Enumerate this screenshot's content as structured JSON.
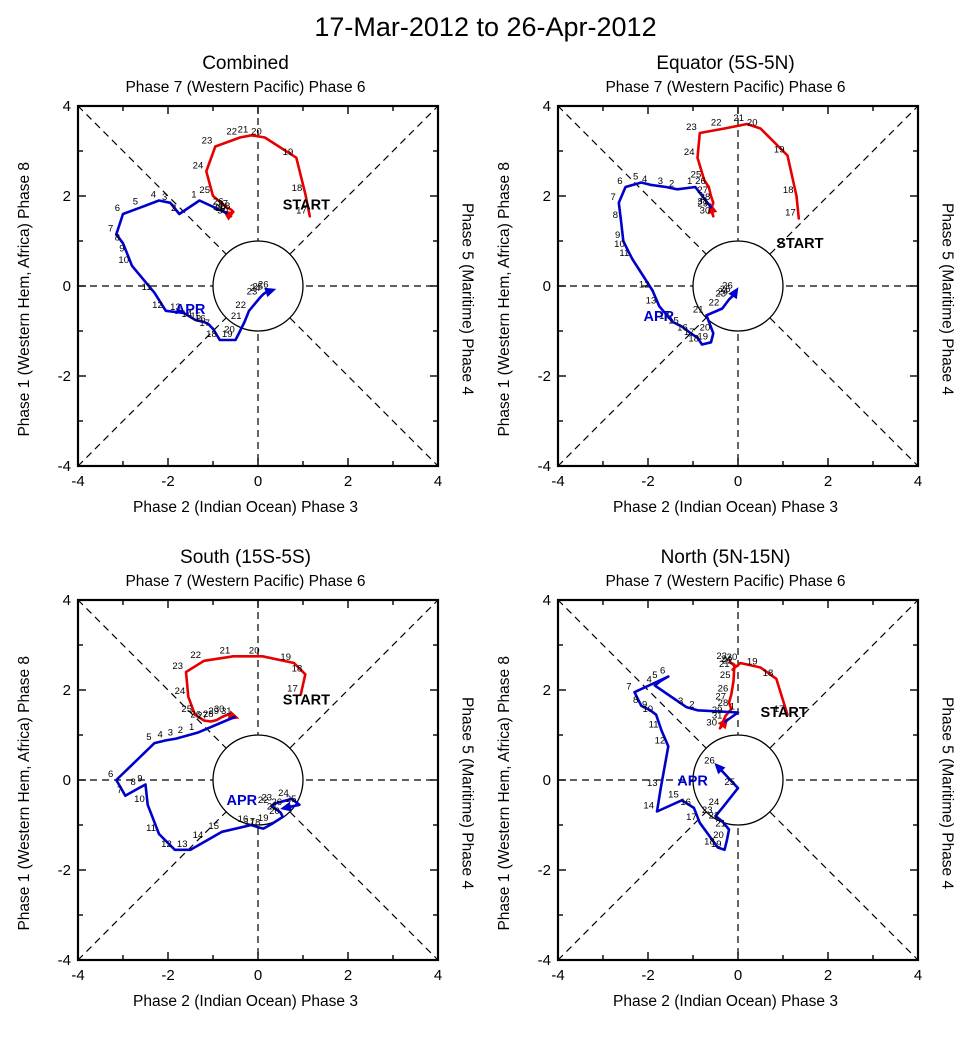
{
  "title": "17-Mar-2012 to 26-Apr-2012",
  "colors": {
    "march": "#e60000",
    "april": "#0000cd",
    "axis": "#000000"
  },
  "chart_data": [
    {
      "type": "line",
      "variant": "mjo-phase-space",
      "title": "Combined",
      "top_label": "Phase 7 (Western Pacific) Phase 6",
      "bottom_label": "Phase 2 (Indian Ocean) Phase 3",
      "left_label": "Phase 1 (Western Hem, Africa) Phase 8",
      "right_label": "Phase 5 (Maritime) Phase 4",
      "xlim": [
        -4,
        4
      ],
      "ylim": [
        -4,
        4
      ],
      "tick_labels": [
        -4,
        -2,
        0,
        2,
        4
      ],
      "tick_step": 1,
      "unit_circle_radius": 1,
      "start_text": "START",
      "start_text_pos": [
        0.55,
        1.7
      ],
      "apr_text": "APR",
      "apr_text_pos": [
        -1.85,
        -0.62
      ],
      "series": [
        {
          "name": "March",
          "color": "#e60000",
          "days": [
            17,
            18,
            19,
            20,
            21,
            22,
            23,
            24,
            25,
            26,
            27,
            28,
            29,
            30,
            31
          ],
          "points": [
            [
              1.15,
              1.55
            ],
            [
              1.05,
              2.05
            ],
            [
              0.85,
              2.85
            ],
            [
              0.15,
              3.3
            ],
            [
              -0.15,
              3.35
            ],
            [
              -0.4,
              3.3
            ],
            [
              -0.95,
              3.1
            ],
            [
              -1.15,
              2.55
            ],
            [
              -1.0,
              2.0
            ],
            [
              -0.7,
              1.75
            ],
            [
              -0.6,
              1.7
            ],
            [
              -0.55,
              1.65
            ],
            [
              -0.65,
              1.6
            ],
            [
              -0.6,
              1.55
            ],
            [
              -0.7,
              1.62
            ]
          ]
        },
        {
          "name": "April",
          "color": "#0000cd",
          "days": [
            1,
            2,
            3,
            4,
            5,
            6,
            7,
            8,
            9,
            10,
            11,
            12,
            13,
            14,
            15,
            16,
            17,
            18,
            19,
            20,
            21,
            22,
            23,
            24,
            25,
            26
          ],
          "points": [
            [
              -1.3,
              1.9
            ],
            [
              -1.75,
              1.6
            ],
            [
              -1.95,
              1.85
            ],
            [
              -2.2,
              1.9
            ],
            [
              -2.6,
              1.75
            ],
            [
              -3.0,
              1.6
            ],
            [
              -3.15,
              1.15
            ],
            [
              -3.0,
              0.95
            ],
            [
              -2.9,
              0.7
            ],
            [
              -2.8,
              0.45
            ],
            [
              -2.3,
              -0.15
            ],
            [
              -2.05,
              -0.55
            ],
            [
              -1.65,
              -0.6
            ],
            [
              -1.4,
              -0.75
            ],
            [
              -1.2,
              -0.8
            ],
            [
              -1.1,
              -0.85
            ],
            [
              -1.0,
              -0.95
            ],
            [
              -0.85,
              -1.2
            ],
            [
              -0.5,
              -1.2
            ],
            [
              -0.45,
              -1.1
            ],
            [
              -0.3,
              -0.8
            ],
            [
              -0.2,
              -0.55
            ],
            [
              0.05,
              -0.25
            ],
            [
              0.12,
              -0.18
            ],
            [
              0.18,
              -0.14
            ],
            [
              0.3,
              -0.1
            ]
          ]
        }
      ]
    },
    {
      "type": "line",
      "variant": "mjo-phase-space",
      "title": "Equator (5S-5N)",
      "top_label": "Phase 7 (Western Pacific) Phase 6",
      "bottom_label": "Phase 2 (Indian Ocean) Phase 3",
      "left_label": "Phase 1 (Western Hem, Africa) Phase 8",
      "right_label": "Phase 5 (Maritime) Phase 4",
      "xlim": [
        -4,
        4
      ],
      "ylim": [
        -4,
        4
      ],
      "tick_labels": [
        -4,
        -2,
        0,
        2,
        4
      ],
      "tick_step": 1,
      "unit_circle_radius": 1,
      "start_text": "START",
      "start_text_pos": [
        0.85,
        0.85
      ],
      "apr_text": "APR",
      "apr_text_pos": [
        -2.1,
        -0.78
      ],
      "series": [
        {
          "name": "March",
          "color": "#e60000",
          "days": [
            17,
            18,
            19,
            20,
            21,
            22,
            23,
            24,
            25,
            26,
            27,
            28,
            29,
            30,
            31
          ],
          "points": [
            [
              1.35,
              1.5
            ],
            [
              1.3,
              2.0
            ],
            [
              1.1,
              2.9
            ],
            [
              0.5,
              3.5
            ],
            [
              0.2,
              3.6
            ],
            [
              -0.3,
              3.5
            ],
            [
              -0.85,
              3.4
            ],
            [
              -0.9,
              2.85
            ],
            [
              -0.75,
              2.35
            ],
            [
              -0.65,
              2.2
            ],
            [
              -0.6,
              2.0
            ],
            [
              -0.55,
              1.85
            ],
            [
              -0.6,
              1.7
            ],
            [
              -0.55,
              1.55
            ],
            [
              -0.6,
              1.75
            ]
          ]
        },
        {
          "name": "April",
          "color": "#0000cd",
          "days": [
            1,
            2,
            3,
            4,
            5,
            6,
            7,
            8,
            9,
            10,
            11,
            12,
            13,
            14,
            15,
            16,
            17,
            18,
            19,
            20,
            21,
            22,
            23,
            24,
            25,
            26
          ],
          "points": [
            [
              -0.95,
              2.2
            ],
            [
              -1.35,
              2.15
            ],
            [
              -1.6,
              2.2
            ],
            [
              -1.95,
              2.25
            ],
            [
              -2.15,
              2.3
            ],
            [
              -2.5,
              2.2
            ],
            [
              -2.65,
              1.85
            ],
            [
              -2.6,
              1.45
            ],
            [
              -2.55,
              1.0
            ],
            [
              -2.45,
              0.8
            ],
            [
              -2.35,
              0.6
            ],
            [
              -1.9,
              -0.1
            ],
            [
              -1.75,
              -0.45
            ],
            [
              -1.45,
              -0.8
            ],
            [
              -1.25,
              -0.9
            ],
            [
              -1.05,
              -1.05
            ],
            [
              -0.9,
              -1.15
            ],
            [
              -0.8,
              -1.3
            ],
            [
              -0.6,
              -1.25
            ],
            [
              -0.55,
              -1.05
            ],
            [
              -0.7,
              -0.65
            ],
            [
              -0.35,
              -0.5
            ],
            [
              -0.2,
              -0.3
            ],
            [
              -0.15,
              -0.25
            ],
            [
              -0.1,
              -0.2
            ],
            [
              -0.05,
              -0.12
            ]
          ]
        }
      ]
    },
    {
      "type": "line",
      "variant": "mjo-phase-space",
      "title": "South (15S-5S)",
      "top_label": "Phase 7 (Western Pacific) Phase 6",
      "bottom_label": "Phase 2 (Indian Ocean) Phase 3",
      "left_label": "Phase 1 (Western Hem, Africa) Phase 8",
      "right_label": "Phase 5 (Maritime) Phase 4",
      "xlim": [
        -4,
        4
      ],
      "ylim": [
        -4,
        4
      ],
      "tick_labels": [
        -4,
        -2,
        0,
        2,
        4
      ],
      "tick_step": 1,
      "unit_circle_radius": 1,
      "start_text": "START",
      "start_text_pos": [
        0.55,
        1.68
      ],
      "apr_text": "APR",
      "apr_text_pos": [
        -0.7,
        -0.55
      ],
      "series": [
        {
          "name": "March",
          "color": "#e60000",
          "days": [
            17,
            18,
            19,
            20,
            21,
            22,
            23,
            24,
            25,
            26,
            27,
            28,
            29,
            30,
            31
          ],
          "points": [
            [
              0.95,
              1.9
            ],
            [
              1.05,
              2.35
            ],
            [
              0.8,
              2.6
            ],
            [
              0.1,
              2.75
            ],
            [
              -0.55,
              2.75
            ],
            [
              -1.2,
              2.65
            ],
            [
              -1.6,
              2.4
            ],
            [
              -1.55,
              1.85
            ],
            [
              -1.4,
              1.45
            ],
            [
              -1.2,
              1.32
            ],
            [
              -1.05,
              1.3
            ],
            [
              -0.92,
              1.33
            ],
            [
              -0.8,
              1.4
            ],
            [
              -0.68,
              1.45
            ],
            [
              -0.52,
              1.4
            ]
          ]
        },
        {
          "name": "April",
          "color": "#0000cd",
          "days": [
            1,
            2,
            3,
            4,
            5,
            6,
            7,
            8,
            9,
            10,
            11,
            12,
            13,
            14,
            15,
            16,
            17,
            18,
            19,
            20,
            21,
            22,
            23,
            24,
            25,
            26
          ],
          "points": [
            [
              -1.35,
              1.05
            ],
            [
              -1.6,
              0.98
            ],
            [
              -1.82,
              0.92
            ],
            [
              -2.05,
              0.88
            ],
            [
              -2.3,
              0.82
            ],
            [
              -3.15,
              0.0
            ],
            [
              -2.95,
              -0.35
            ],
            [
              -2.65,
              -0.18
            ],
            [
              -2.5,
              -0.1
            ],
            [
              -2.45,
              -0.55
            ],
            [
              -2.2,
              -1.2
            ],
            [
              -1.85,
              -1.55
            ],
            [
              -1.5,
              -1.55
            ],
            [
              -1.15,
              -1.35
            ],
            [
              -0.8,
              -1.15
            ],
            [
              -0.15,
              -1.0
            ],
            [
              0.0,
              -1.05
            ],
            [
              0.12,
              -1.08
            ],
            [
              0.3,
              -0.98
            ],
            [
              0.55,
              -0.82
            ],
            [
              0.5,
              -0.72
            ],
            [
              0.3,
              -0.58
            ],
            [
              0.38,
              -0.52
            ],
            [
              0.75,
              -0.42
            ],
            [
              0.92,
              -0.55
            ],
            [
              0.6,
              -0.62
            ]
          ]
        }
      ]
    },
    {
      "type": "line",
      "variant": "mjo-phase-space",
      "title": "North (5N-15N)",
      "top_label": "Phase 7 (Western Pacific) Phase 6",
      "bottom_label": "Phase 2 (Indian Ocean) Phase 3",
      "left_label": "Phase 1 (Western Hem, Africa) Phase 8",
      "right_label": "Phase 5 (Maritime) Phase 4",
      "xlim": [
        -4,
        4
      ],
      "ylim": [
        -4,
        4
      ],
      "tick_labels": [
        -4,
        -2,
        0,
        2,
        4
      ],
      "tick_step": 1,
      "unit_circle_radius": 1,
      "start_text": "START",
      "start_text_pos": [
        0.5,
        1.4
      ],
      "apr_text": "APR",
      "apr_text_pos": [
        -1.35,
        -0.12
      ],
      "series": [
        {
          "name": "March",
          "color": "#e60000",
          "days": [
            17,
            18,
            19,
            20,
            21,
            22,
            23,
            24,
            25,
            26,
            27,
            28,
            29,
            30,
            31
          ],
          "points": [
            [
              1.1,
              1.45
            ],
            [
              0.85,
              2.25
            ],
            [
              0.5,
              2.5
            ],
            [
              0.05,
              2.6
            ],
            [
              -0.12,
              2.45
            ],
            [
              -0.05,
              2.52
            ],
            [
              -0.18,
              2.62
            ],
            [
              -0.08,
              2.56
            ],
            [
              -0.1,
              2.2
            ],
            [
              -0.15,
              1.9
            ],
            [
              -0.2,
              1.72
            ],
            [
              -0.15,
              1.58
            ],
            [
              -0.28,
              1.42
            ],
            [
              -0.4,
              1.15
            ],
            [
              -0.28,
              1.3
            ]
          ]
        },
        {
          "name": "April",
          "color": "#0000cd",
          "days": [
            1,
            2,
            3,
            4,
            5,
            6,
            7,
            8,
            9,
            10,
            11,
            12,
            13,
            14,
            15,
            16,
            17,
            18,
            19,
            20,
            21,
            22,
            23,
            24,
            25,
            26
          ],
          "points": [
            [
              0.0,
              1.5
            ],
            [
              -0.9,
              1.55
            ],
            [
              -1.15,
              1.62
            ],
            [
              -1.85,
              2.1
            ],
            [
              -1.72,
              2.2
            ],
            [
              -1.55,
              2.3
            ],
            [
              -2.3,
              1.95
            ],
            [
              -2.15,
              1.65
            ],
            [
              -1.95,
              1.55
            ],
            [
              -1.82,
              1.45
            ],
            [
              -1.7,
              1.1
            ],
            [
              -1.55,
              0.75
            ],
            [
              -1.72,
              -0.2
            ],
            [
              -1.8,
              -0.7
            ],
            [
              -1.25,
              -0.45
            ],
            [
              -0.98,
              -0.62
            ],
            [
              -0.85,
              -0.95
            ],
            [
              -0.45,
              -1.5
            ],
            [
              -0.3,
              -1.55
            ],
            [
              -0.25,
              -1.35
            ],
            [
              -0.2,
              -1.1
            ],
            [
              -0.35,
              -0.92
            ],
            [
              -0.5,
              -0.8
            ],
            [
              -0.35,
              -0.62
            ],
            [
              0.0,
              -0.18
            ],
            [
              -0.45,
              0.3
            ]
          ]
        }
      ]
    }
  ]
}
